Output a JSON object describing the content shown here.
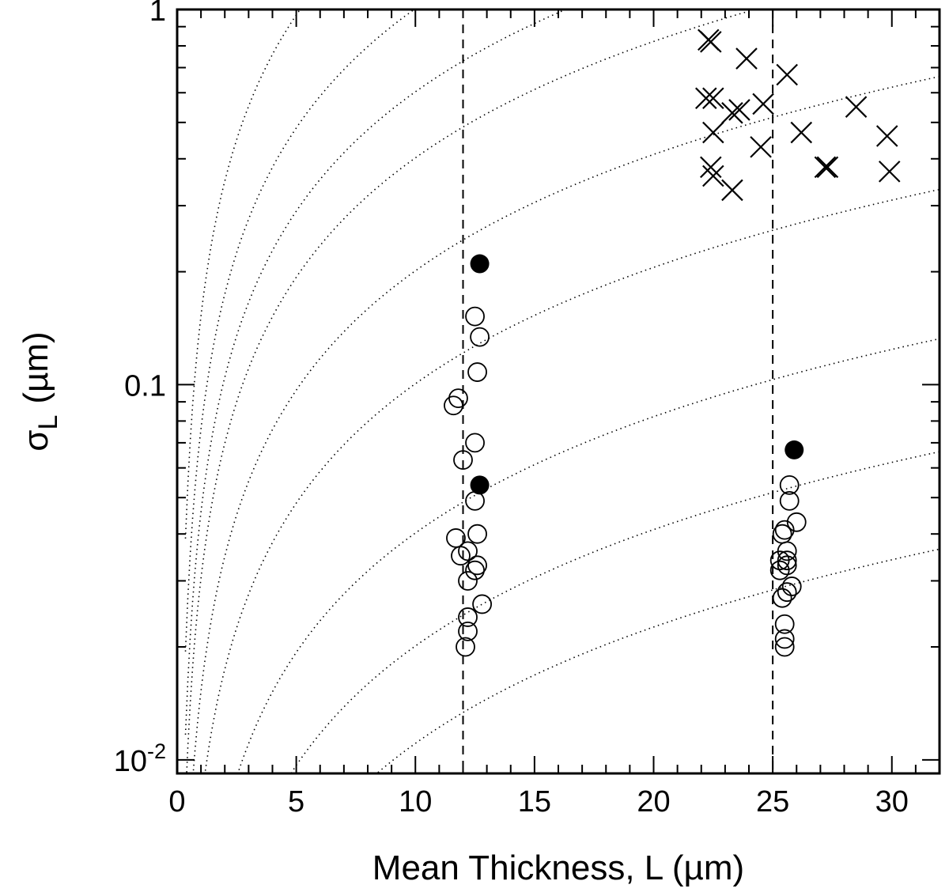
{
  "chart_data": {
    "type": "scatter",
    "title": "",
    "xlabel": "Mean Thickness, L (µm)",
    "ylabel": {
      "symbol": "σ",
      "subscript": "L",
      "units": "(µm)"
    },
    "x_scale": "linear",
    "y_scale": "log",
    "xlim": [
      0,
      32
    ],
    "ylim": [
      0.0092,
      1.0
    ],
    "x_ticks": [
      0,
      5,
      10,
      15,
      20,
      25,
      30
    ],
    "x_tick_labels": [
      "0",
      "5",
      "10",
      "15",
      "20",
      "25",
      "30"
    ],
    "y_major_ticks": [
      0.01,
      0.1,
      1
    ],
    "y_tick_labels": [
      {
        "base": "10",
        "exp": "-2"
      },
      {
        "base": "0.1",
        "exp": ""
      },
      {
        "base": "1",
        "exp": ""
      }
    ],
    "grid": false,
    "legend": "none",
    "reference_lines": [
      12,
      25
    ],
    "guide_curves": {
      "style": "dotted",
      "relative_sigma": [
        0.00055,
        0.001,
        0.002,
        0.005,
        0.01,
        0.02,
        0.03,
        0.05,
        0.1
      ]
    },
    "series": [
      {
        "marker": "open-circle",
        "points": [
          [
            12.5,
            0.152
          ],
          [
            12.7,
            0.134
          ],
          [
            12.6,
            0.108
          ],
          [
            11.8,
            0.092
          ],
          [
            11.6,
            0.088
          ],
          [
            12.5,
            0.07
          ],
          [
            12.0,
            0.063
          ],
          [
            12.5,
            0.049
          ],
          [
            11.7,
            0.039
          ],
          [
            12.6,
            0.04
          ],
          [
            11.9,
            0.035
          ],
          [
            12.2,
            0.036
          ],
          [
            12.6,
            0.033
          ],
          [
            12.5,
            0.032
          ],
          [
            12.2,
            0.03
          ],
          [
            12.8,
            0.026
          ],
          [
            12.2,
            0.024
          ],
          [
            12.2,
            0.022
          ],
          [
            12.1,
            0.02
          ],
          [
            25.7,
            0.054
          ],
          [
            25.7,
            0.049
          ],
          [
            26.0,
            0.043
          ],
          [
            25.5,
            0.041
          ],
          [
            25.4,
            0.04
          ],
          [
            25.6,
            0.036
          ],
          [
            25.3,
            0.034
          ],
          [
            25.6,
            0.034
          ],
          [
            25.6,
            0.033
          ],
          [
            25.3,
            0.032
          ],
          [
            25.8,
            0.029
          ],
          [
            25.6,
            0.028
          ],
          [
            25.4,
            0.027
          ],
          [
            25.5,
            0.023
          ],
          [
            25.5,
            0.021
          ],
          [
            25.5,
            0.02
          ]
        ]
      },
      {
        "marker": "filled-circle",
        "points": [
          [
            12.7,
            0.21
          ],
          [
            12.7,
            0.054
          ],
          [
            25.9,
            0.067
          ]
        ]
      },
      {
        "marker": "cross",
        "points": [
          [
            22.3,
            0.83
          ],
          [
            22.4,
            0.82
          ],
          [
            23.9,
            0.74
          ],
          [
            25.6,
            0.67
          ],
          [
            22.2,
            0.58
          ],
          [
            22.5,
            0.58
          ],
          [
            23.3,
            0.53
          ],
          [
            23.6,
            0.54
          ],
          [
            24.6,
            0.56
          ],
          [
            28.5,
            0.55
          ],
          [
            22.5,
            0.47
          ],
          [
            26.2,
            0.47
          ],
          [
            29.8,
            0.46
          ],
          [
            24.5,
            0.43
          ],
          [
            22.4,
            0.38
          ],
          [
            27.2,
            0.38
          ],
          [
            27.3,
            0.38
          ],
          [
            22.5,
            0.36
          ],
          [
            29.9,
            0.37
          ],
          [
            23.3,
            0.33
          ]
        ]
      }
    ]
  }
}
